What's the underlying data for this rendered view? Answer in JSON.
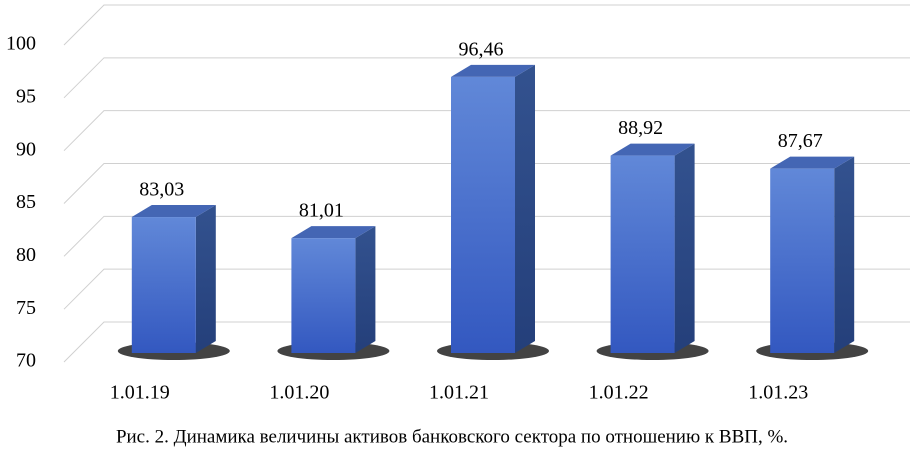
{
  "chart_data": {
    "type": "bar3d",
    "title": "Рис. 2. Динамика величины активов банковского сектора по отношению к ВВП, %.",
    "categories": [
      "1.01.19",
      "1.01.20",
      "1.01.21",
      "1.01.22",
      "1.01.23"
    ],
    "values": [
      83.03,
      81.01,
      96.46,
      88.92,
      87.67
    ],
    "value_labels": [
      "83,03",
      "81,01",
      "96,46",
      "88,92",
      "87,67"
    ],
    "color": "#4a73cc",
    "ylim": [
      70,
      100
    ],
    "yticks": [
      70,
      75,
      80,
      85,
      90,
      95,
      100
    ],
    "grid": true
  }
}
